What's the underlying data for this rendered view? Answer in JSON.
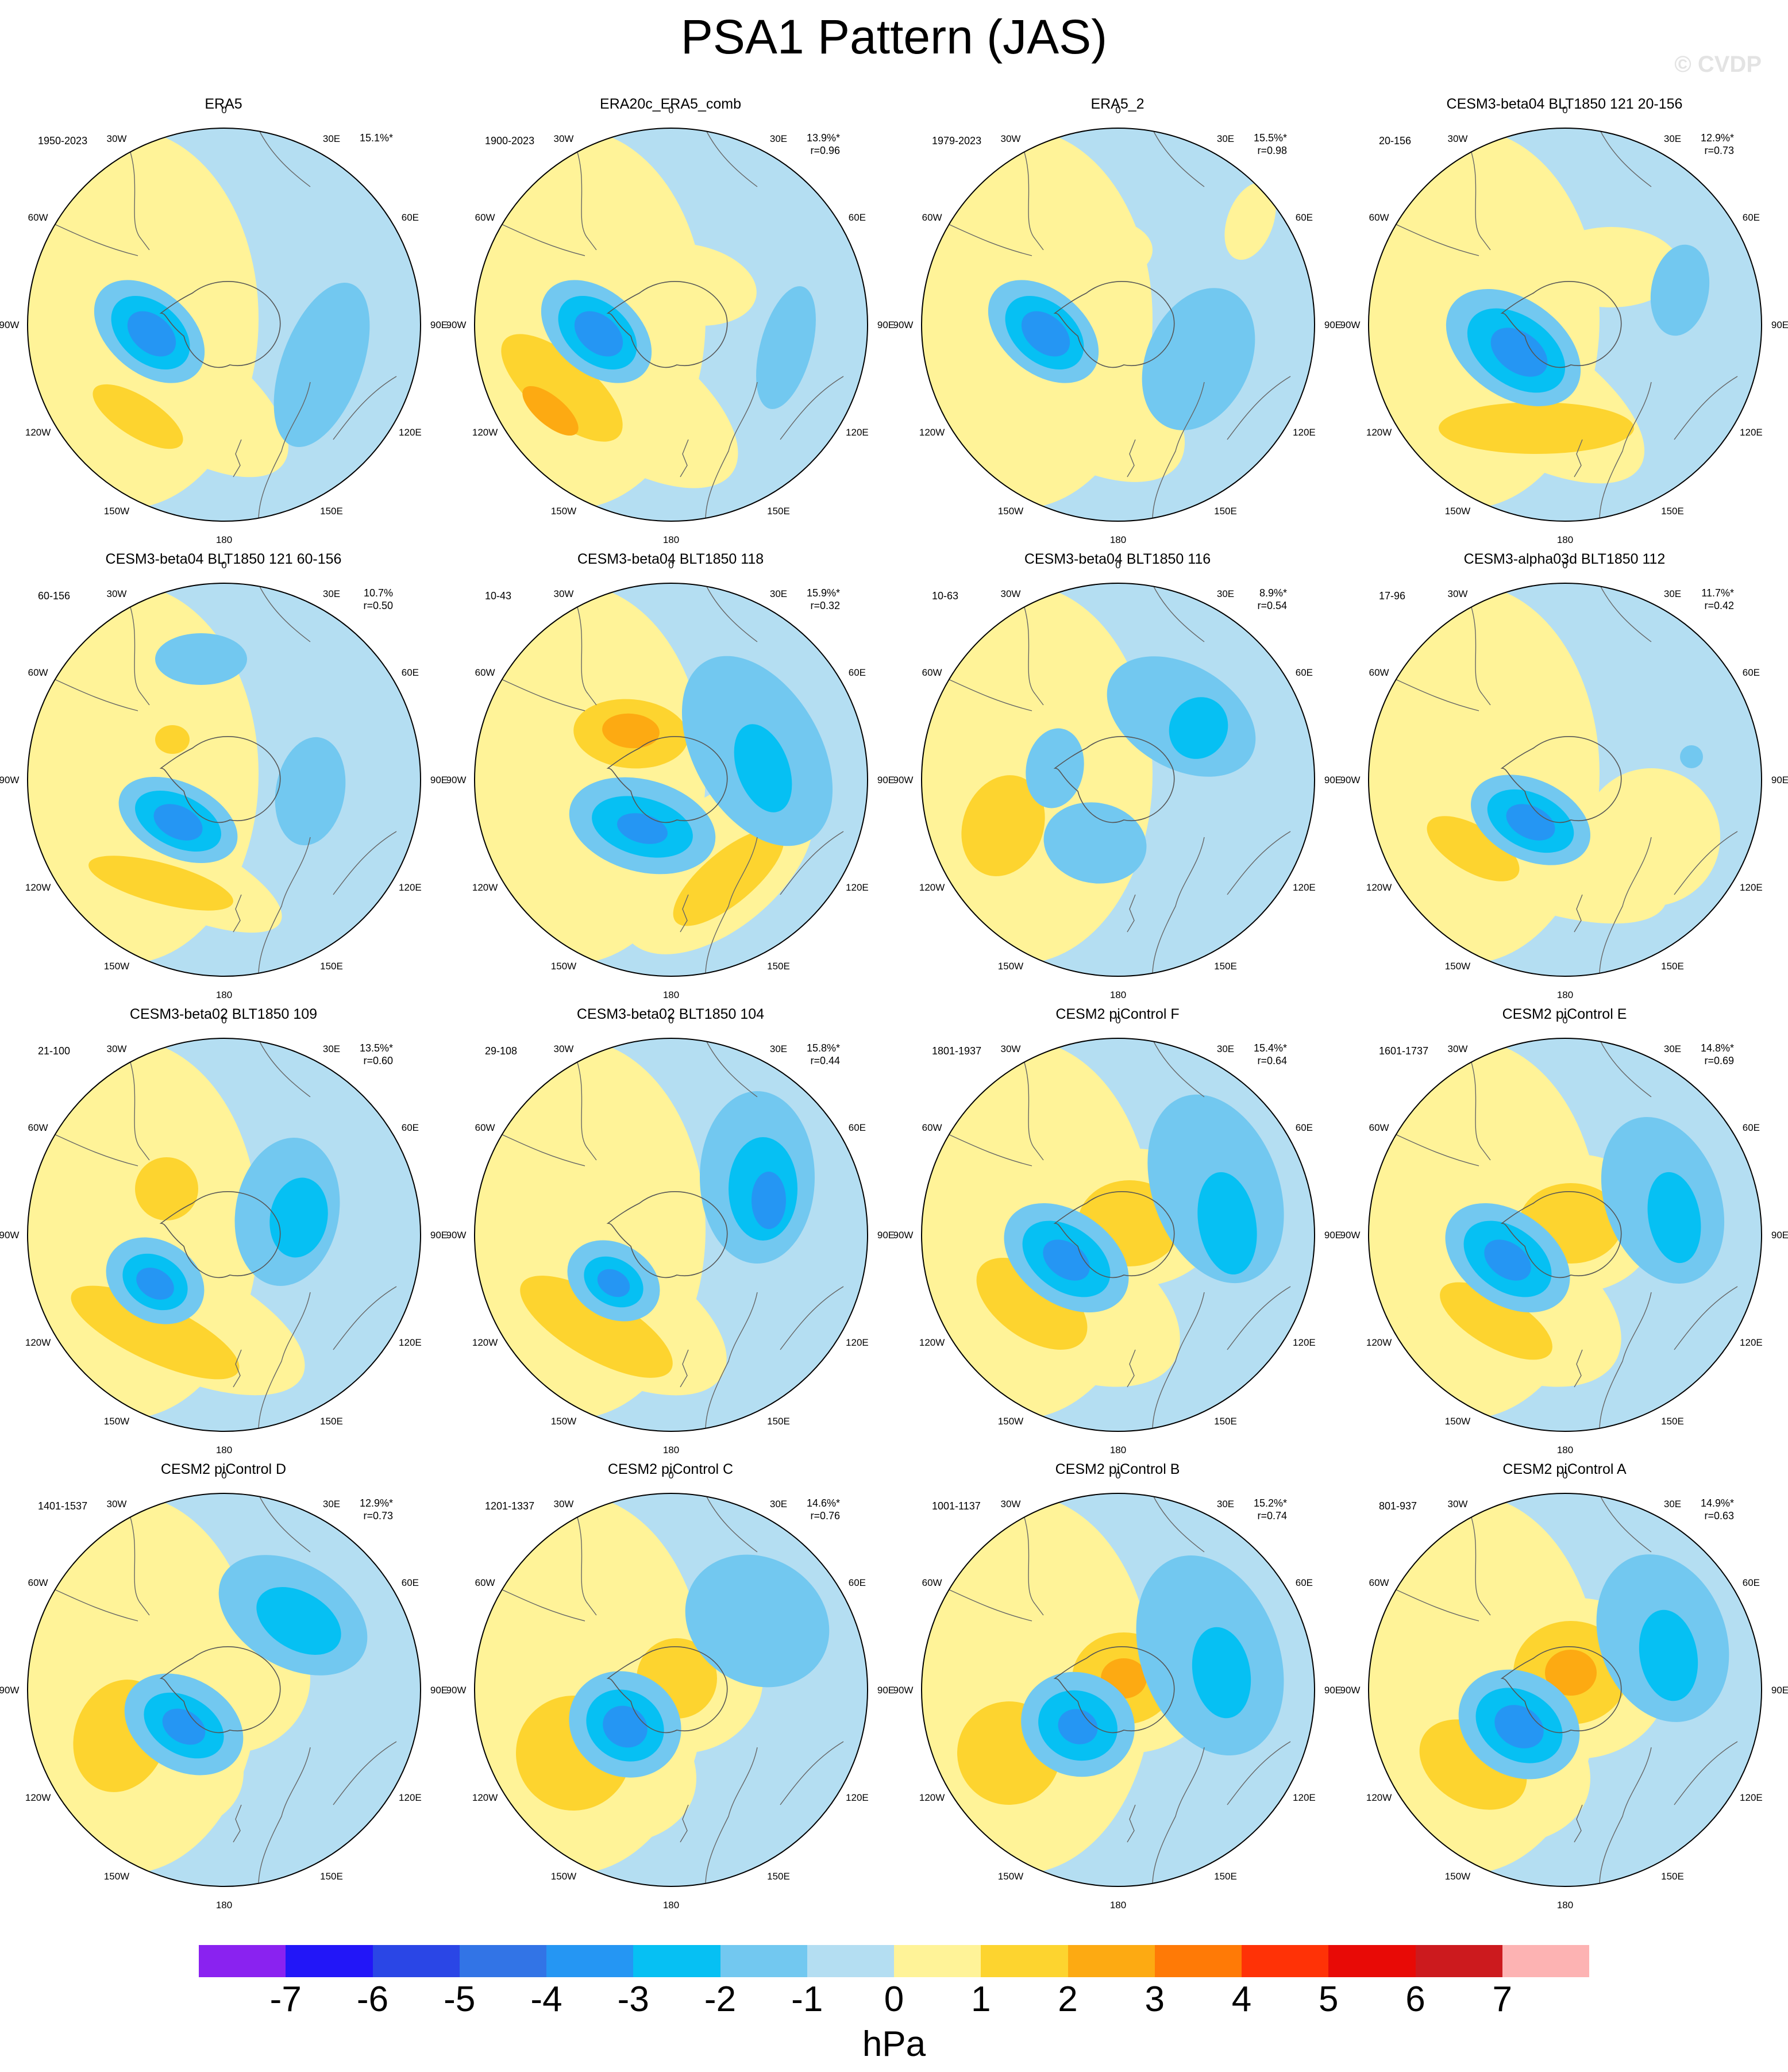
{
  "figure": {
    "title": "PSA1 Pattern (JAS)",
    "watermark": "© CVDP",
    "units": "hPa",
    "lon_labels": [
      "0",
      "30E",
      "60E",
      "90E",
      "120E",
      "150E",
      "180",
      "150W",
      "120W",
      "90W",
      "60W",
      "30W"
    ]
  },
  "colorbar": {
    "labels": [
      "-7",
      "-6",
      "-5",
      "-4",
      "-3",
      "-2",
      "-1",
      "0",
      "1",
      "2",
      "3",
      "4",
      "5",
      "6",
      "7"
    ],
    "colors": [
      "#8a22f0",
      "#2216f8",
      "#2a46e6",
      "#3274e6",
      "#2596f3",
      "#06c0f3",
      "#72c8f0",
      "#b4def2",
      "#fff398",
      "#fdd42f",
      "#fdaa12",
      "#ff7a06",
      "#ff3206",
      "#e80a06",
      "#cc1a1e",
      "#fdb3b3"
    ]
  },
  "panels": [
    {
      "title": "ERA5",
      "years": "1950-2023",
      "stat": "15.1%*",
      "r": ""
    },
    {
      "title": "ERA20c_ERA5_comb",
      "years": "1900-2023",
      "stat": "13.9%*",
      "r": "r=0.96"
    },
    {
      "title": "ERA5_2",
      "years": "1979-2023",
      "stat": "15.5%*",
      "r": "r=0.98"
    },
    {
      "title": "CESM3-beta04 BLT1850 121 20-156",
      "years": "20-156",
      "stat": "12.9%*",
      "r": "r=0.73"
    },
    {
      "title": "CESM3-beta04 BLT1850 121 60-156",
      "years": "60-156",
      "stat": "10.7%",
      "r": "r=0.50"
    },
    {
      "title": "CESM3-beta04 BLT1850 118",
      "years": "10-43",
      "stat": "15.9%*",
      "r": "r=0.32"
    },
    {
      "title": "CESM3-beta04 BLT1850 116",
      "years": "10-63",
      "stat": "8.9%*",
      "r": "r=0.54"
    },
    {
      "title": "CESM3-alpha03d BLT1850 112",
      "years": "17-96",
      "stat": "11.7%*",
      "r": "r=0.42"
    },
    {
      "title": "CESM3-beta02 BLT1850 109",
      "years": "21-100",
      "stat": "13.5%*",
      "r": "r=0.60"
    },
    {
      "title": "CESM3-beta02 BLT1850 104",
      "years": "29-108",
      "stat": "15.8%*",
      "r": "r=0.44"
    },
    {
      "title": "CESM2 piControl F",
      "years": "1801-1937",
      "stat": "15.4%*",
      "r": "r=0.64"
    },
    {
      "title": "CESM2 piControl E",
      "years": "1601-1737",
      "stat": "14.8%*",
      "r": "r=0.69"
    },
    {
      "title": "CESM2 piControl D",
      "years": "1401-1537",
      "stat": "12.9%*",
      "r": "r=0.73"
    },
    {
      "title": "CESM2 piControl C",
      "years": "1201-1337",
      "stat": "14.6%*",
      "r": "r=0.76"
    },
    {
      "title": "CESM2 piControl B",
      "years": "1001-1137",
      "stat": "15.2%*",
      "r": "r=0.74"
    },
    {
      "title": "CESM2 piControl A",
      "years": "801-937",
      "stat": "14.9%*",
      "r": "r=0.63"
    }
  ]
}
